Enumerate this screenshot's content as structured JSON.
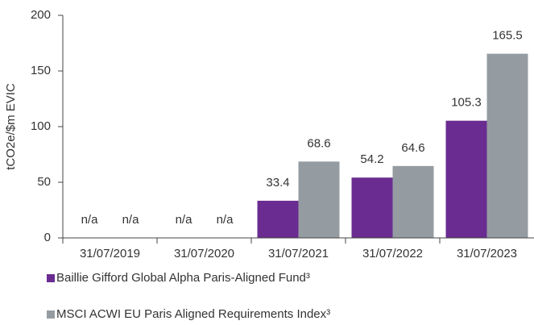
{
  "chart_data": {
    "type": "bar",
    "ylabel": "tCO2e/$m EVIC",
    "categories": [
      "31/07/2019",
      "31/07/2020",
      "31/07/2021",
      "31/07/2022",
      "31/07/2023"
    ],
    "series": [
      {
        "name": "Baillie Gifford Global Alpha Paris-Aligned Fund³",
        "color": "#6b2c91",
        "values": [
          null,
          null,
          33.4,
          54.2,
          105.3
        ],
        "value_labels": [
          "n/a",
          "n/a",
          "33.4",
          "54.2",
          "105.3"
        ]
      },
      {
        "name": "MSCI ACWI EU Paris Aligned Requirements Index³",
        "color": "#949ca1",
        "values": [
          null,
          null,
          68.6,
          64.6,
          165.5
        ],
        "value_labels": [
          "n/a",
          "n/a",
          "68.6",
          "64.6",
          "165.5"
        ]
      }
    ],
    "ylim": [
      0,
      200
    ],
    "yticks": [
      0,
      50,
      100,
      150,
      200
    ],
    "grid": false
  }
}
